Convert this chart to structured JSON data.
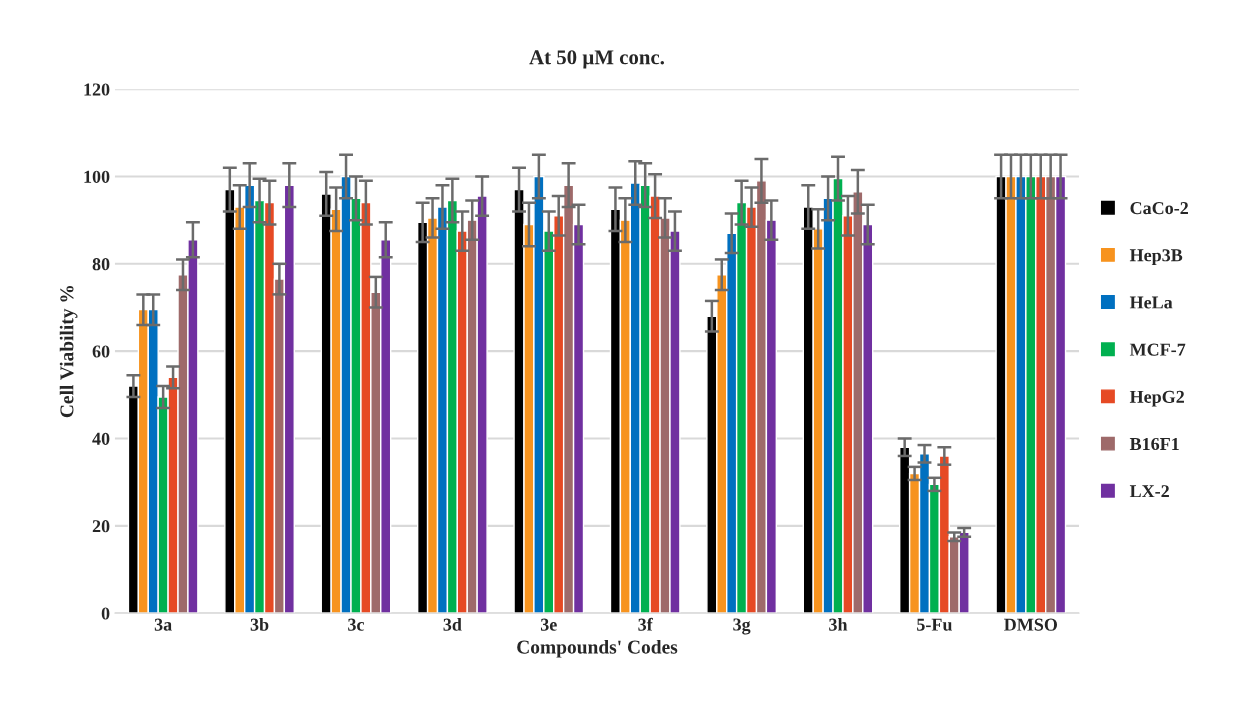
{
  "chart_data": {
    "type": "bar",
    "title": "At 50 µM conc.",
    "xlabel": "Compounds' Codes",
    "ylabel": "Cell Viability %",
    "categories": [
      "3a",
      "3b",
      "3c",
      "3d",
      "3e",
      "3f",
      "3g",
      "3h",
      "5-Fu",
      "DMSO"
    ],
    "series": [
      {
        "name": "CaCo-2",
        "color": "#000000",
        "values": [
          52,
          97,
          96,
          89.5,
          97,
          92.5,
          68,
          93,
          38,
          100
        ],
        "errors": [
          2.5,
          5,
          5,
          4.5,
          5,
          5,
          3.5,
          5,
          2,
          5
        ]
      },
      {
        "name": "Hep3B",
        "color": "#f7931e",
        "values": [
          69.5,
          93,
          92.5,
          90.5,
          89,
          90,
          77.5,
          88,
          32,
          100
        ],
        "errors": [
          3.5,
          5,
          5,
          4.5,
          5,
          5,
          3.5,
          4.5,
          1.5,
          5
        ]
      },
      {
        "name": "HeLa",
        "color": "#0070c0",
        "values": [
          69.5,
          98,
          100,
          93,
          100,
          98.5,
          87,
          95,
          36.5,
          100
        ],
        "errors": [
          3.5,
          5,
          5,
          5,
          5,
          5,
          4.5,
          5,
          2,
          5
        ]
      },
      {
        "name": "MCF-7",
        "color": "#00b050",
        "values": [
          49.5,
          94.5,
          95,
          94.5,
          87.5,
          98,
          94,
          99.5,
          29.5,
          100
        ],
        "errors": [
          2.5,
          5,
          5,
          5,
          4.5,
          5,
          5,
          5,
          1.5,
          5
        ]
      },
      {
        "name": "HepG2",
        "color": "#e64a24",
        "values": [
          54,
          94,
          94,
          87.5,
          91,
          95.5,
          93,
          91,
          36,
          100
        ],
        "errors": [
          2.5,
          5,
          5,
          4.5,
          4.5,
          5,
          4.5,
          4.5,
          2,
          5
        ]
      },
      {
        "name": "B16F1",
        "color": "#9e6a6a",
        "values": [
          77.5,
          76.5,
          73.5,
          90,
          98,
          90.5,
          99,
          96.5,
          17.5,
          100
        ],
        "errors": [
          3.5,
          3.5,
          3.5,
          4.5,
          5,
          4.5,
          5,
          5,
          1,
          5
        ]
      },
      {
        "name": "LX-2",
        "color": "#7030a0",
        "values": [
          85.5,
          98,
          85.5,
          95.5,
          89,
          87.5,
          90,
          89,
          18.5,
          100
        ],
        "errors": [
          4,
          5,
          4,
          4.5,
          4.5,
          4.5,
          4.5,
          4.5,
          1,
          5
        ]
      }
    ],
    "ylim": [
      0,
      120
    ],
    "yticks": [
      0,
      20,
      40,
      60,
      80,
      100,
      120
    ],
    "grid": "y",
    "legend": "right",
    "marker": "square"
  }
}
